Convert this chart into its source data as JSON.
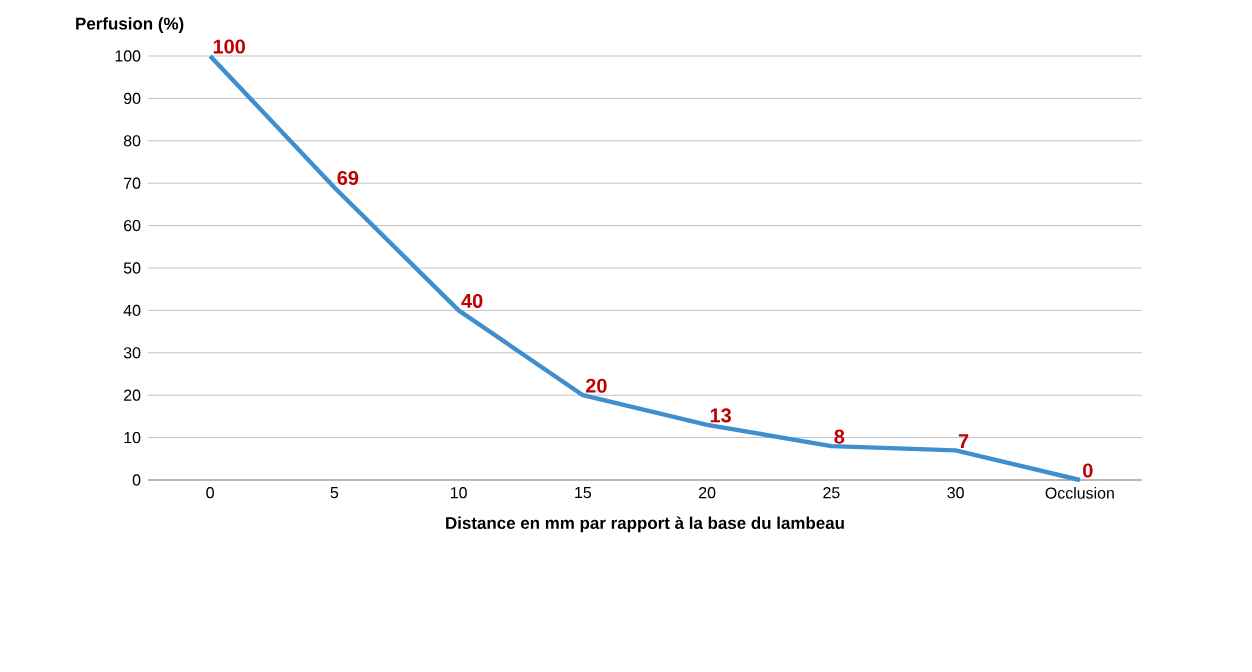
{
  "chart_data": {
    "type": "line",
    "ylabel": "Perfusion (%)",
    "xlabel": "Distance en mm par rapport à la base du lambeau",
    "categories": [
      "0",
      "5",
      "10",
      "15",
      "20",
      "25",
      "30",
      "Occlusion"
    ],
    "series": [
      {
        "color": "#3f8fcf",
        "values": [
          100,
          69,
          40,
          20,
          13,
          8,
          7,
          0
        ]
      }
    ],
    "ylim": [
      0,
      100
    ],
    "yticks": [
      0,
      10,
      20,
      30,
      40,
      50,
      60,
      70,
      80,
      90,
      100
    ],
    "grid": "y",
    "data_labels": true,
    "marker": "none",
    "line_style": "solid"
  }
}
